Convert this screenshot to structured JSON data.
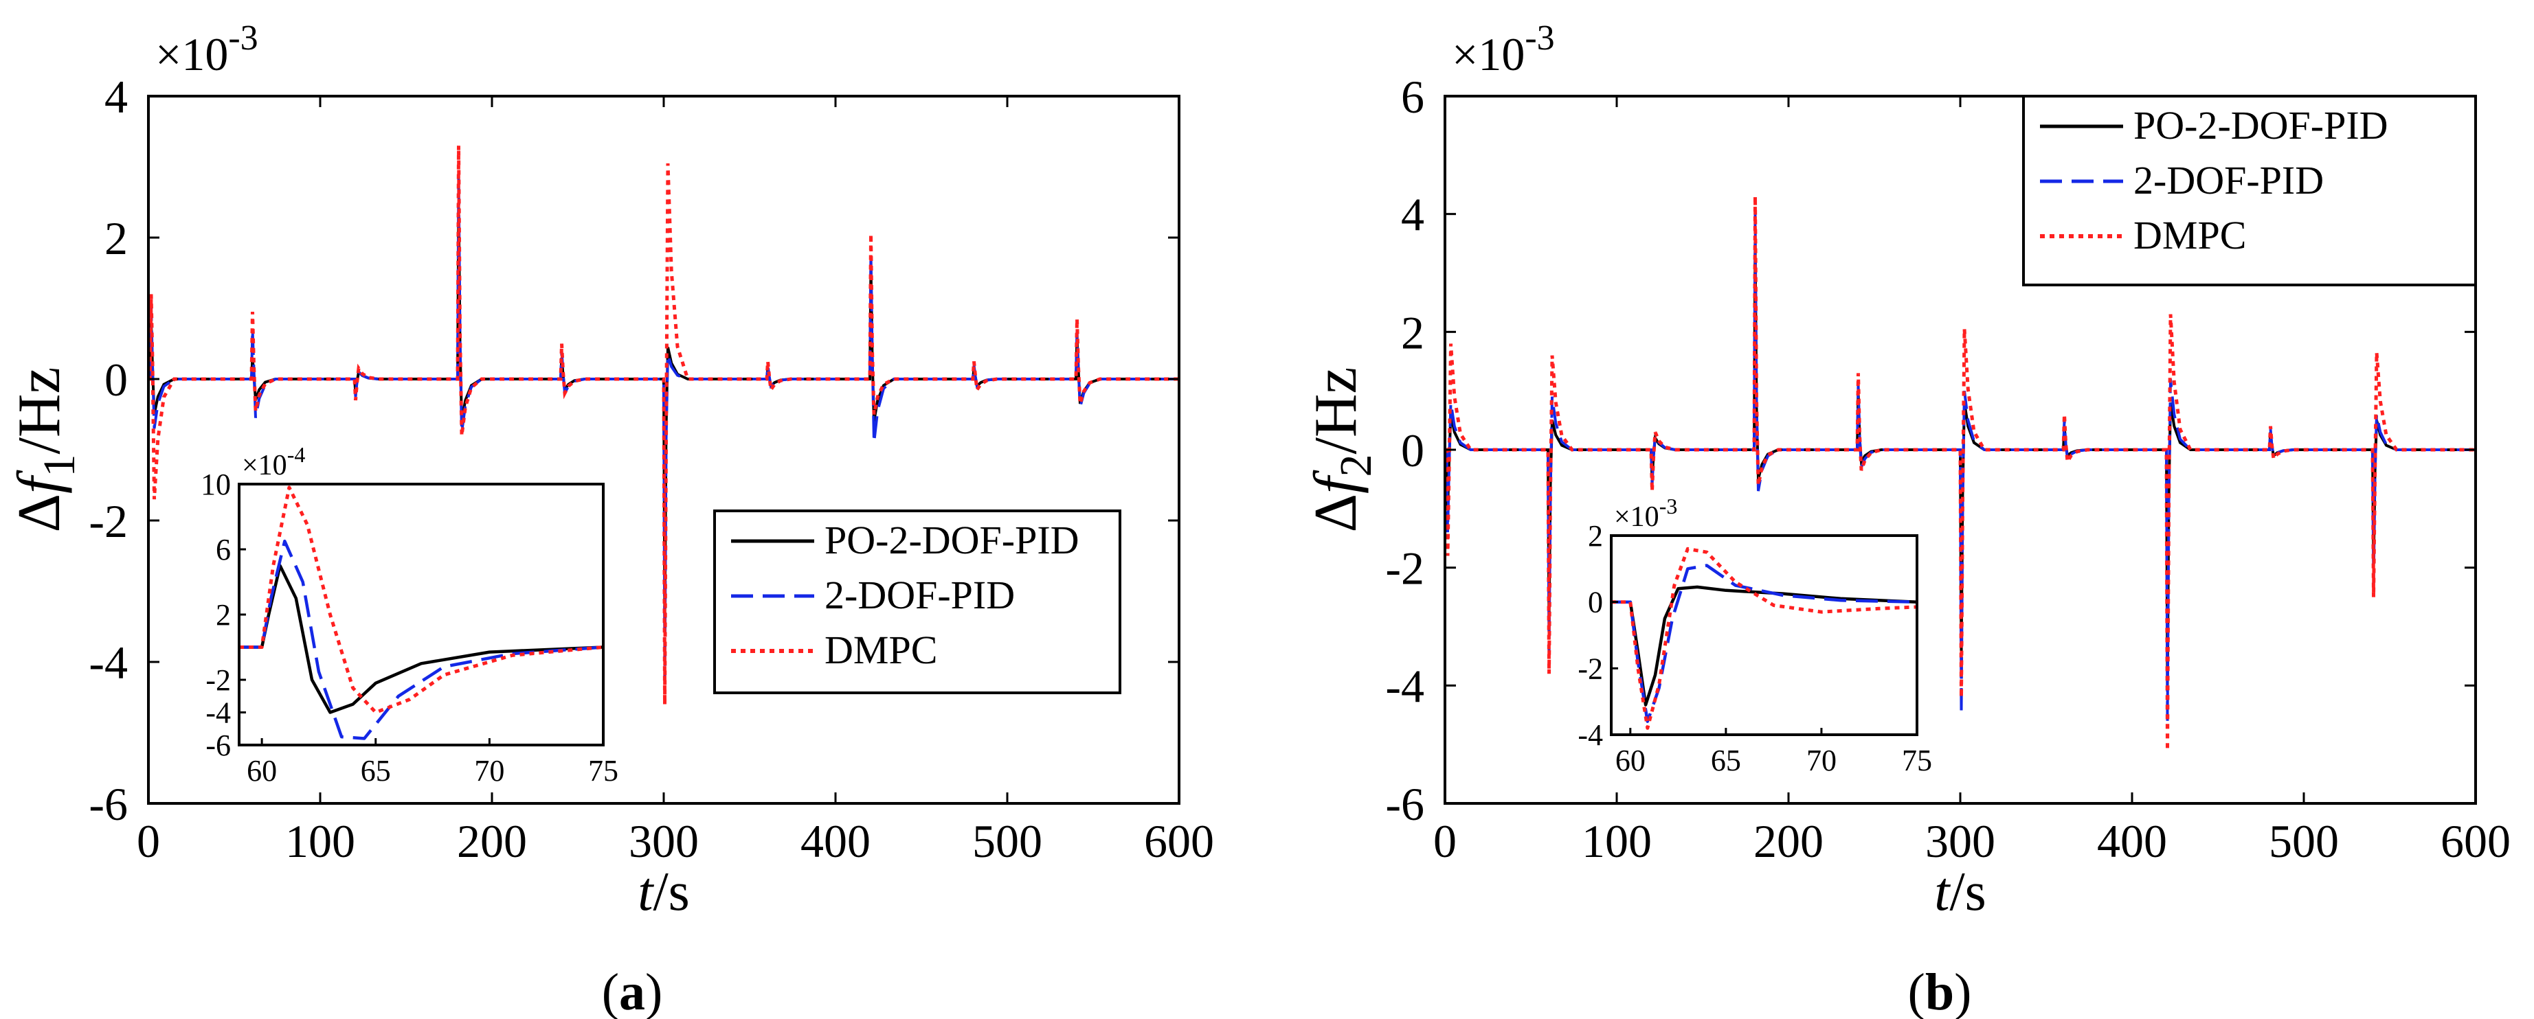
{
  "colors": {
    "po_2dof_pid": "#000000",
    "dof_pid": "#1428e6",
    "dmpc": "#ff2020"
  },
  "panels": [
    {
      "id": "a",
      "caption_open": "(",
      "caption_letter": "a",
      "caption_close": ")",
      "multiplier_base": "×10",
      "multiplier_exp": "-3",
      "ylabel_delta": "Δ",
      "ylabel_f": "f",
      "ylabel_sub": "1",
      "ylabel_unit": "/Hz",
      "xlabel_t": "t",
      "xlabel_unit": "/s",
      "legend": [
        "PO-2-DOF-PID",
        "2-DOF-PID",
        "DMPC"
      ],
      "inset": {
        "multiplier_base": "×10",
        "multiplier_exp": "-4"
      }
    },
    {
      "id": "b",
      "caption_open": "(",
      "caption_letter": "b",
      "caption_close": ")",
      "multiplier_base": "×10",
      "multiplier_exp": "-3",
      "ylabel_delta": "Δ",
      "ylabel_f": "f",
      "ylabel_sub": "2",
      "ylabel_unit": "/Hz",
      "xlabel_t": "t",
      "xlabel_unit": "/s",
      "legend": [
        "PO-2-DOF-PID",
        "2-DOF-PID",
        "DMPC"
      ],
      "inset": {
        "multiplier_base": "×10",
        "multiplier_exp": "-3"
      }
    }
  ],
  "chart_data": [
    {
      "type": "line",
      "title": "(a)",
      "xlabel": "t/s",
      "ylabel": "Δf1/Hz",
      "y_multiplier": "×10^-3",
      "xlim": [
        0,
        600
      ],
      "ylim": [
        -6,
        4
      ],
      "xticks": [
        0,
        100,
        200,
        300,
        400,
        500,
        600
      ],
      "yticks": [
        -6,
        -4,
        -2,
        0,
        2,
        4
      ],
      "legend_position": "lower-right",
      "series": [
        {
          "name": "PO-2-DOF-PID",
          "style": "solid",
          "events": [
            [
              1,
              0.8,
              -0.5
            ],
            [
              60,
              0.3,
              -0.3
            ],
            [
              120,
              -0.2,
              0.1
            ],
            [
              180,
              2.5,
              -0.6
            ],
            [
              240,
              0.3,
              -0.15
            ],
            [
              300,
              -3.5,
              0.45
            ],
            [
              360,
              0.15,
              -0.1
            ],
            [
              420,
              1.6,
              -0.6
            ],
            [
              480,
              0.15,
              -0.1
            ],
            [
              540,
              0.6,
              -0.35
            ]
          ]
        },
        {
          "name": "2-DOF-PID",
          "style": "dashed",
          "events": [
            [
              1,
              1.0,
              -0.7
            ],
            [
              60,
              0.7,
              -0.55
            ],
            [
              120,
              -0.25,
              0.1
            ],
            [
              180,
              2.9,
              -0.75
            ],
            [
              240,
              0.4,
              -0.2
            ],
            [
              300,
              -4.3,
              0.35
            ],
            [
              360,
              0.2,
              -0.1
            ],
            [
              420,
              1.8,
              -0.9
            ],
            [
              480,
              0.2,
              -0.1
            ],
            [
              540,
              0.7,
              -0.4
            ]
          ]
        },
        {
          "name": "DMPC",
          "style": "dotted",
          "events": [
            [
              1,
              1.2,
              -1.7
            ],
            [
              60,
              0.95,
              -0.45
            ],
            [
              120,
              -0.3,
              0.15
            ],
            [
              180,
              3.3,
              -0.8
            ],
            [
              240,
              0.5,
              -0.2
            ],
            [
              300,
              -4.6,
              3.05
            ],
            [
              360,
              0.25,
              -0.15
            ],
            [
              420,
              2.05,
              -0.5
            ],
            [
              480,
              0.25,
              -0.15
            ],
            [
              540,
              0.85,
              -0.35
            ]
          ]
        }
      ],
      "inset": {
        "y_multiplier": "×10^-4",
        "xlim": [
          59,
          75
        ],
        "ylim": [
          -6,
          10
        ],
        "xticks": [
          60,
          65,
          70,
          75
        ],
        "yticks": [
          -6,
          -4,
          -2,
          2,
          6,
          10
        ],
        "series": [
          {
            "name": "PO-2-DOF-PID",
            "x": [
              59,
              60,
              60.3,
              60.8,
              61.5,
              62.2,
              63,
              64,
              65,
              67,
              70,
              75
            ],
            "y": [
              0,
              0,
              2,
              5,
              3,
              -2,
              -4,
              -3.5,
              -2.2,
              -1,
              -0.3,
              0
            ]
          },
          {
            "name": "2-DOF-PID",
            "x": [
              59,
              60,
              60.4,
              61,
              61.8,
              62.5,
              63.5,
              64.5,
              66,
              68,
              71,
              75
            ],
            "y": [
              0,
              0,
              3,
              6.5,
              4,
              -1.5,
              -5.5,
              -5.6,
              -3,
              -1.2,
              -0.4,
              0
            ]
          },
          {
            "name": "DMPC",
            "x": [
              59,
              60,
              60.5,
              61.2,
              62,
              63,
              64,
              65,
              66.5,
              68,
              71,
              75
            ],
            "y": [
              0,
              0,
              5,
              9.8,
              7.5,
              2,
              -2.5,
              -4,
              -3.2,
              -1.7,
              -0.5,
              0
            ]
          }
        ]
      }
    },
    {
      "type": "line",
      "title": "(b)",
      "xlabel": "t/s",
      "ylabel": "Δf2/Hz",
      "y_multiplier": "×10^-3",
      "xlim": [
        0,
        600
      ],
      "ylim": [
        -6,
        6
      ],
      "xticks": [
        0,
        100,
        200,
        300,
        400,
        500,
        600
      ],
      "yticks": [
        -6,
        -4,
        -2,
        0,
        2,
        4,
        6
      ],
      "legend_position": "top-right",
      "series": [
        {
          "name": "PO-2-DOF-PID",
          "style": "solid",
          "events": [
            [
              1,
              -1.0,
              0.6
            ],
            [
              60,
              -3.0,
              0.5
            ],
            [
              120,
              -0.5,
              0.2
            ],
            [
              180,
              3.5,
              -0.5
            ],
            [
              240,
              1.0,
              -0.2
            ],
            [
              300,
              -3.5,
              0.8
            ],
            [
              360,
              0.4,
              -0.1
            ],
            [
              420,
              -4.0,
              0.8
            ],
            [
              480,
              0.3,
              -0.1
            ],
            [
              540,
              -2.0,
              0.5
            ]
          ]
        },
        {
          "name": "2-DOF-PID",
          "style": "dashed",
          "events": [
            [
              1,
              -1.4,
              0.8
            ],
            [
              60,
              -3.5,
              0.9
            ],
            [
              120,
              -0.6,
              0.25
            ],
            [
              180,
              4.0,
              -0.7
            ],
            [
              240,
              1.1,
              -0.3
            ],
            [
              300,
              -4.5,
              1.0
            ],
            [
              360,
              0.5,
              -0.15
            ],
            [
              420,
              -4.6,
              1.2
            ],
            [
              480,
              0.35,
              -0.1
            ],
            [
              540,
              -2.3,
              0.6
            ]
          ]
        },
        {
          "name": "DMPC",
          "style": "dotted",
          "events": [
            [
              1,
              -1.8,
              1.8
            ],
            [
              60,
              -3.8,
              1.6
            ],
            [
              120,
              -0.7,
              0.3
            ],
            [
              180,
              4.3,
              -0.6
            ],
            [
              240,
              1.3,
              -0.35
            ],
            [
              300,
              -4.2,
              2.05
            ],
            [
              360,
              0.6,
              -0.2
            ],
            [
              420,
              -5.1,
              2.3
            ],
            [
              480,
              0.4,
              -0.15
            ],
            [
              540,
              -2.5,
              1.65
            ]
          ]
        }
      ],
      "inset": {
        "y_multiplier": "×10^-3",
        "xlim": [
          59,
          75
        ],
        "ylim": [
          -4,
          2
        ],
        "xticks": [
          60,
          65,
          70,
          75
        ],
        "yticks": [
          -4,
          -2,
          0,
          2
        ],
        "series": [
          {
            "name": "PO-2-DOF-PID",
            "x": [
              59,
              60,
              60.4,
              60.8,
              61.3,
              61.8,
              62.5,
              63.5,
              65,
              68,
              71,
              75
            ],
            "y": [
              0,
              0,
              -1.5,
              -3.1,
              -2.2,
              -0.5,
              0.4,
              0.45,
              0.35,
              0.25,
              0.1,
              0
            ]
          },
          {
            "name": "2-DOF-PID",
            "x": [
              59,
              60,
              60.4,
              60.9,
              61.5,
              62.2,
              63,
              64,
              65.5,
              68,
              71,
              75
            ],
            "y": [
              0,
              0,
              -1.8,
              -3.6,
              -2.6,
              -0.5,
              1.0,
              1.1,
              0.5,
              0.2,
              0.05,
              0
            ]
          },
          {
            "name": "DMPC",
            "x": [
              59,
              60,
              60.4,
              60.9,
              61.5,
              62.3,
              63,
              64,
              65.5,
              67.5,
              70,
              73,
              75
            ],
            "y": [
              0,
              0,
              -2.0,
              -3.8,
              -2.5,
              0.5,
              1.6,
              1.5,
              0.6,
              -0.1,
              -0.3,
              -0.2,
              -0.15
            ]
          }
        ]
      }
    }
  ]
}
